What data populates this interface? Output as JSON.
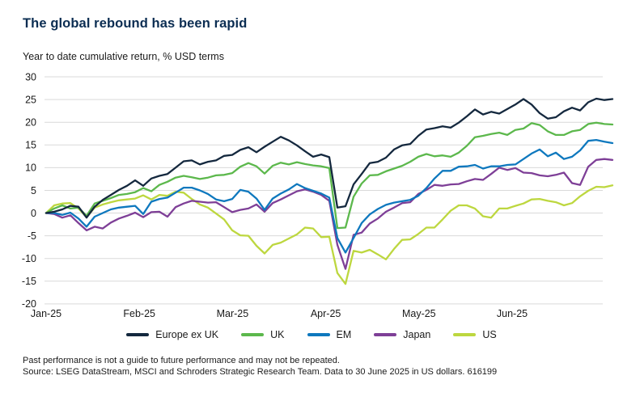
{
  "colors": {
    "title_text": "#0B2D52",
    "body_text": "#1A1A1A",
    "grid": "#D9D9D9",
    "background": "#FFFFFF"
  },
  "footer": {
    "line1": "Past performance is not a guide to future performance and may not be repeated.",
    "line2": "Source: LSEG DataStream, MSCI and Schroders Strategic Research Team. Data to 30 June 2025 in US dollars. 616199"
  },
  "chart_data": {
    "type": "line",
    "title": "The global rebound has been rapid",
    "subtitle": "Year to date cumulative return, % USD terms",
    "x_tick_labels": [
      "Jan-25",
      "Feb-25",
      "Mar-25",
      "Apr-25",
      "May-25",
      "Jun-25"
    ],
    "x_description": "71 evenly spaced samples, 1 Jan 2025 to 30 Jun 2025",
    "ylim": [
      -20,
      30
    ],
    "ytick_step": 5,
    "grid": true,
    "legend_position": "bottom",
    "series": [
      {
        "name": "Europe ex UK",
        "color": "#14283E",
        "values": [
          0,
          0.3,
          0.8,
          1.6,
          1.4,
          -1.0,
          1.4,
          2.9,
          4.0,
          5.1,
          6.0,
          7.2,
          6.0,
          7.6,
          8.2,
          8.6,
          10.0,
          11.4,
          11.6,
          10.7,
          11.3,
          11.6,
          12.6,
          12.8,
          13.9,
          14.5,
          13.4,
          14.6,
          15.7,
          16.8,
          16.0,
          14.9,
          13.6,
          12.4,
          12.9,
          12.3,
          1.2,
          1.5,
          6.3,
          8.6,
          11.0,
          11.3,
          12.2,
          14.0,
          14.9,
          15.2,
          17.0,
          18.4,
          18.7,
          19.1,
          18.8,
          19.9,
          21.3,
          22.8,
          21.7,
          22.3,
          21.9,
          22.9,
          23.9,
          25.1,
          23.9,
          22.0,
          20.8,
          21.1,
          22.4,
          23.2,
          22.6,
          24.4,
          25.2,
          24.9,
          25.1
        ]
      },
      {
        "name": "UK",
        "color": "#5CB84C",
        "values": [
          0,
          1.0,
          1.7,
          1.0,
          1.2,
          -0.6,
          2.1,
          2.7,
          3.3,
          4.0,
          4.2,
          4.6,
          5.5,
          4.8,
          6.2,
          6.9,
          7.8,
          8.2,
          7.9,
          7.5,
          7.8,
          8.3,
          8.4,
          8.8,
          10.2,
          11.0,
          10.3,
          8.7,
          10.4,
          11.1,
          10.7,
          11.2,
          10.8,
          10.5,
          10.3,
          9.9,
          -3.3,
          -3.2,
          3.6,
          6.5,
          8.3,
          8.4,
          9.2,
          9.8,
          10.4,
          11.3,
          12.4,
          13.0,
          12.5,
          12.7,
          12.4,
          13.3,
          14.8,
          16.7,
          17.0,
          17.4,
          17.7,
          17.2,
          18.3,
          18.6,
          19.8,
          19.4,
          18.0,
          17.2,
          17.2,
          18.0,
          18.3,
          19.6,
          19.9,
          19.6,
          19.5
        ]
      },
      {
        "name": "EM",
        "color": "#0E78BE",
        "values": [
          0,
          0,
          -0.4,
          0.1,
          -1.2,
          -3.0,
          -0.8,
          0,
          0.8,
          1.2,
          1.4,
          1.6,
          -0.2,
          2.5,
          3.1,
          3.4,
          4.5,
          5.6,
          5.6,
          5.0,
          4.2,
          3.0,
          2.6,
          3.1,
          5.1,
          4.7,
          3.2,
          0.7,
          3.2,
          4.3,
          5.2,
          6.4,
          5.5,
          4.9,
          4.3,
          3.4,
          -5.5,
          -8.7,
          -5.5,
          -2.2,
          -0.3,
          0.9,
          1.8,
          2.3,
          2.6,
          2.9,
          3.8,
          5.5,
          7.6,
          9.3,
          9.3,
          10.2,
          10.3,
          10.6,
          9.8,
          10.3,
          10.3,
          10.6,
          10.7,
          11.9,
          13.1,
          14.0,
          12.5,
          13.3,
          11.9,
          12.4,
          13.8,
          15.9,
          16.1,
          15.7,
          15.4
        ]
      },
      {
        "name": "Japan",
        "color": "#7E3F97",
        "values": [
          0,
          -0.2,
          -1.0,
          -0.5,
          -2.2,
          -3.8,
          -3.0,
          -3.4,
          -2.1,
          -1.2,
          -0.6,
          0.1,
          -0.9,
          0.2,
          0.3,
          -0.8,
          1.3,
          2.1,
          2.7,
          2.5,
          2.3,
          2.4,
          1.3,
          0.2,
          0.7,
          1.0,
          1.9,
          0.3,
          2.2,
          3.0,
          3.9,
          4.8,
          5.2,
          4.7,
          4.0,
          2.7,
          -7.0,
          -12.3,
          -4.8,
          -4.3,
          -2.3,
          -1.2,
          0.3,
          1.2,
          2.2,
          2.4,
          4.2,
          5.1,
          6.2,
          6.0,
          6.3,
          6.4,
          7.0,
          7.5,
          7.3,
          8.6,
          10.0,
          9.5,
          9.9,
          8.9,
          8.8,
          8.3,
          8.1,
          8.4,
          8.9,
          6.6,
          6.2,
          10.2,
          11.7,
          11.9,
          11.7
        ]
      },
      {
        "name": "US",
        "color": "#BDD73F",
        "values": [
          0,
          1.7,
          2.1,
          2.2,
          1.0,
          -0.9,
          1.2,
          1.9,
          2.4,
          2.8,
          3.0,
          3.2,
          3.9,
          3.0,
          4.0,
          3.8,
          4.7,
          4.5,
          3.1,
          1.9,
          1.2,
          -0.1,
          -1.4,
          -3.8,
          -4.9,
          -5.0,
          -7.2,
          -8.9,
          -7.0,
          -6.5,
          -5.6,
          -4.7,
          -3.2,
          -3.4,
          -5.3,
          -5.2,
          -13.2,
          -15.6,
          -8.3,
          -8.7,
          -8.1,
          -9.1,
          -10.2,
          -7.9,
          -5.9,
          -5.8,
          -4.6,
          -3.2,
          -3.2,
          -1.4,
          0.5,
          1.7,
          1.7,
          1.0,
          -0.7,
          -1.0,
          1.0,
          1.0,
          1.6,
          2.1,
          3.0,
          3.1,
          2.7,
          2.4,
          1.7,
          2.2,
          3.7,
          4.9,
          5.8,
          5.7,
          6.1
        ]
      }
    ]
  }
}
